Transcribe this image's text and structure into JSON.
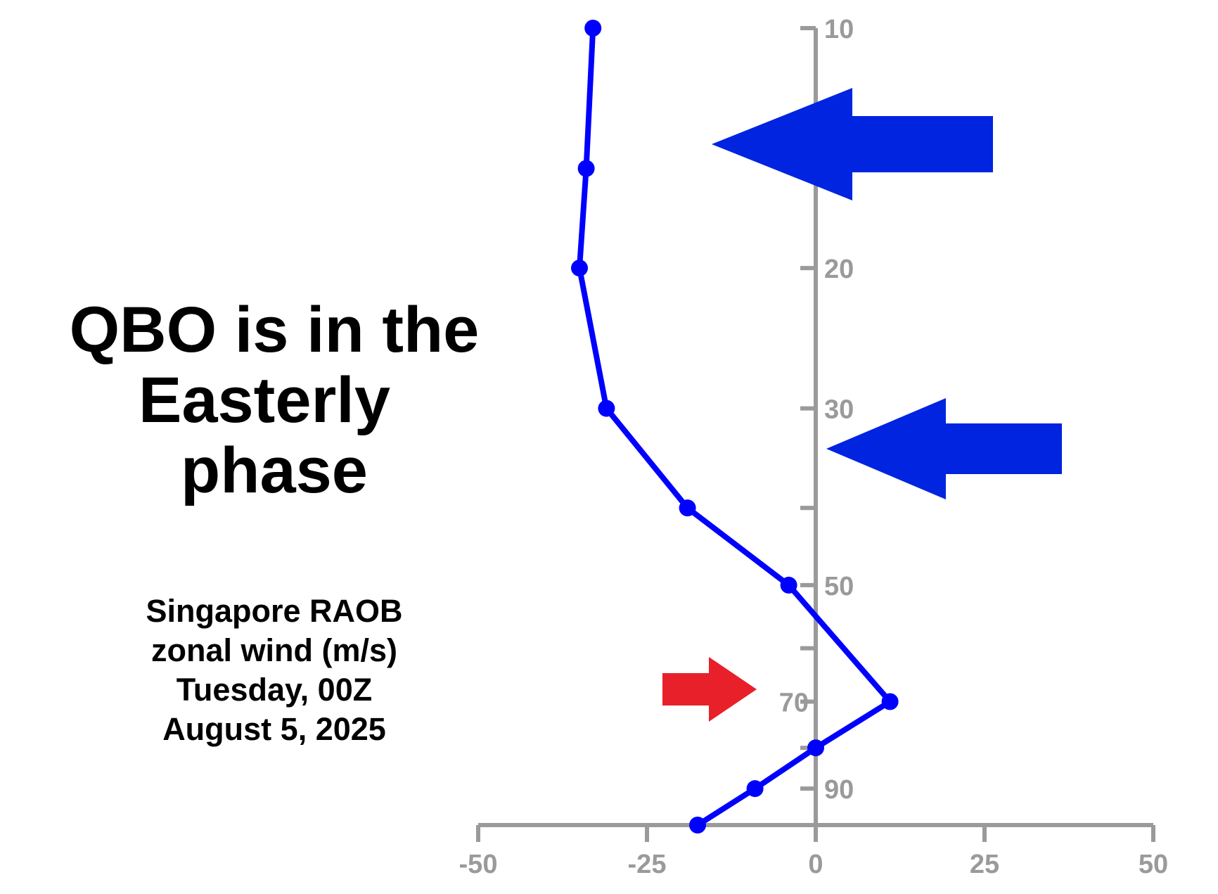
{
  "headline": {
    "lines": [
      "QBO is in the",
      "Easterly",
      "phase"
    ]
  },
  "caption": {
    "lines": [
      "Singapore RAOB",
      "zonal wind (m/s)",
      "Tuesday, 00Z",
      "August 5, 2025"
    ]
  },
  "colors": {
    "profile": "#0000ff",
    "wind_arrows": "#0024e0",
    "highlight_arrow": "#e8202a",
    "axis": "#9a9a9a",
    "text": "#000000"
  },
  "chart_data": {
    "type": "line",
    "title": "",
    "xlabel": "",
    "ylabel": "",
    "xlim": [
      -50,
      50
    ],
    "ylim": [
      100,
      10
    ],
    "y_scale": "log",
    "y_inverted": true,
    "x_ticks": [
      -50,
      -25,
      0,
      25,
      50
    ],
    "x_tick_labels": [
      "-50",
      "-25",
      "0",
      "25",
      "50"
    ],
    "y_ticks": [
      10,
      20,
      30,
      40,
      50,
      60,
      70,
      80,
      90
    ],
    "y_tick_labels": [
      {
        "value": 10,
        "label": "10"
      },
      {
        "value": 20,
        "label": "20"
      },
      {
        "value": 30,
        "label": "30"
      },
      {
        "value": 50,
        "label": "50"
      },
      {
        "value": 70,
        "label": "70"
      },
      {
        "value": 90,
        "label": "90"
      }
    ],
    "highlighted_level": 70,
    "grid": false,
    "series": [
      {
        "x": [
          -33,
          -34,
          -35,
          -31,
          -19,
          -4,
          11,
          0,
          -9,
          -17.5
        ],
        "y": [
          10,
          15,
          20,
          30,
          40,
          50,
          70,
          80,
          90,
          100
        ]
      }
    ],
    "direction_arrows": [
      {
        "pressure": 15,
        "direction": "westward",
        "strength": "strong"
      },
      {
        "pressure": 33,
        "direction": "westward",
        "strength": "moderate"
      }
    ]
  }
}
